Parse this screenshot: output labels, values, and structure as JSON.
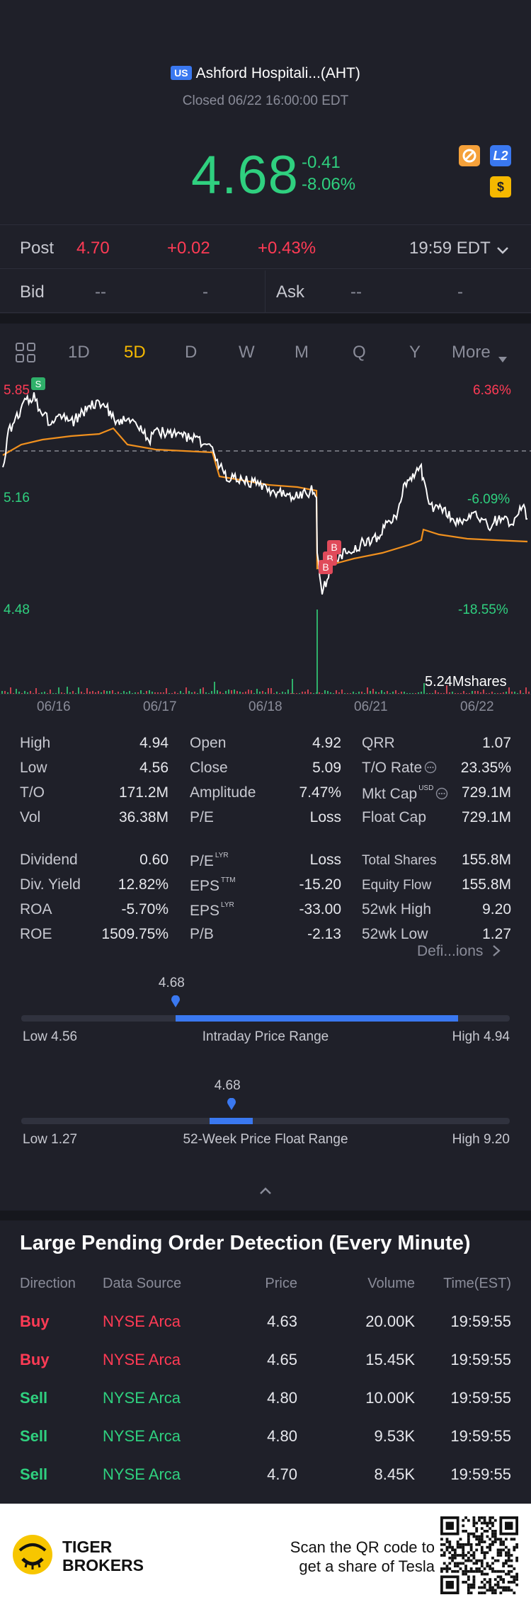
{
  "header": {
    "market_badge": "US",
    "title": "Ashford Hospitali...(AHT)",
    "status": "Closed 06/22 16:00:00 EDT",
    "price": "4.68",
    "change": "-0.41",
    "change_pct": "-8.06%",
    "badges": [
      "orange-o-icon",
      "L2",
      "$"
    ]
  },
  "post": {
    "label": "Post",
    "price": "4.70",
    "change": "+0.02",
    "change_pct": "+0.43%",
    "time": "19:59 EDT"
  },
  "quote": {
    "bid_label": "Bid",
    "bid_price": "--",
    "bid_size": "-",
    "ask_label": "Ask",
    "ask_price": "--",
    "ask_size": "-"
  },
  "tabs": {
    "items": [
      "1D",
      "5D",
      "D",
      "W",
      "M",
      "Q",
      "Y",
      "More"
    ],
    "active": "5D"
  },
  "chart": {
    "top_price": "5.85",
    "top_pct": "6.36%",
    "mid_price": "5.16",
    "mid_pct": "-6.09%",
    "low_price": "4.48",
    "low_pct": "-18.55%",
    "volume_label": "5.24Mshares",
    "dates": [
      "06/16",
      "06/17",
      "06/18",
      "06/21",
      "06/22"
    ],
    "trade_markers": [
      "S",
      "B",
      "B",
      "B"
    ],
    "colors": {
      "price_line": "#ffffff",
      "avg_line": "#f0901e",
      "marker_buy": "#e04a5a",
      "marker_sell": "#2fb06a"
    }
  },
  "stats": {
    "col1": [
      {
        "k": "High",
        "v": "4.94"
      },
      {
        "k": "Low",
        "v": "4.56"
      },
      {
        "k": "T/O",
        "v": "171.2M"
      },
      {
        "k": "Vol",
        "v": "36.38M"
      },
      {
        "k": "Dividend",
        "v": "0.60"
      },
      {
        "k": "Div. Yield",
        "v": "12.82%"
      },
      {
        "k": "ROA",
        "v": "-5.70%"
      },
      {
        "k": "ROE",
        "v": "1509.75%"
      }
    ],
    "col2": [
      {
        "k": "Open",
        "v": "4.92",
        "sup": ""
      },
      {
        "k": "Close",
        "v": "5.09",
        "sup": ""
      },
      {
        "k": "Amplitude",
        "v": "7.47%",
        "sup": ""
      },
      {
        "k": "P/E",
        "v": "Loss",
        "sup": ""
      },
      {
        "k": "P/E",
        "v": "Loss",
        "sup": "LYR"
      },
      {
        "k": "EPS",
        "v": "-15.20",
        "sup": "TTM"
      },
      {
        "k": "EPS",
        "v": "-33.00",
        "sup": "LYR"
      },
      {
        "k": "P/B",
        "v": "-2.13",
        "sup": ""
      }
    ],
    "col3": [
      {
        "k": "QRR",
        "v": "1.07",
        "sup": ""
      },
      {
        "k": "T/O Rate",
        "v": "23.35%",
        "sup": ""
      },
      {
        "k": "Mkt Cap",
        "v": "729.1M",
        "sup": "USD"
      },
      {
        "k": "Float Cap",
        "v": "729.1M",
        "sup": ""
      },
      {
        "k": "Total Shares",
        "v": "155.8M",
        "sup": ""
      },
      {
        "k": "Equity Flow",
        "v": "155.8M",
        "sup": ""
      },
      {
        "k": "52wk High",
        "v": "9.20",
        "sup": ""
      },
      {
        "k": "52wk Low",
        "v": "1.27",
        "sup": ""
      }
    ],
    "definitions_link": "Defi...ions"
  },
  "intraday_range": {
    "current": "4.68",
    "low_label": "Low 4.56",
    "title": "Intraday Price Range",
    "high_label": "High 4.94",
    "low": 4.56,
    "high": 4.94,
    "value": 4.68,
    "fill_to": 4.9
  },
  "week52_range": {
    "current": "4.68",
    "low_label": "Low 1.27",
    "title": "52-Week Price Float Range",
    "high_label": "High 9.20",
    "low": 1.27,
    "high": 9.2,
    "value": 4.68
  },
  "orders": {
    "title": "Large Pending Order Detection (Every Minute)",
    "headers": [
      "Direction",
      "Data Source",
      "Price",
      "Volume",
      "Time(EST)"
    ],
    "rows": [
      {
        "dir": "Buy",
        "src": "NYSE Arca",
        "price": "4.63",
        "vol": "20.00K",
        "time": "19:59:55"
      },
      {
        "dir": "Buy",
        "src": "NYSE Arca",
        "price": "4.65",
        "vol": "15.45K",
        "time": "19:59:55"
      },
      {
        "dir": "Sell",
        "src": "NYSE Arca",
        "price": "4.80",
        "vol": "10.00K",
        "time": "19:59:55"
      },
      {
        "dir": "Sell",
        "src": "NYSE Arca",
        "price": "4.80",
        "vol": "9.53K",
        "time": "19:59:55"
      },
      {
        "dir": "Sell",
        "src": "NYSE Arca",
        "price": "4.70",
        "vol": "8.45K",
        "time": "19:59:55"
      }
    ]
  },
  "footer": {
    "brand_line1": "TIGER",
    "brand_line2": "BROKERS",
    "scan_line1": "Scan the QR code to",
    "scan_line2": "get a share of Tesla"
  }
}
